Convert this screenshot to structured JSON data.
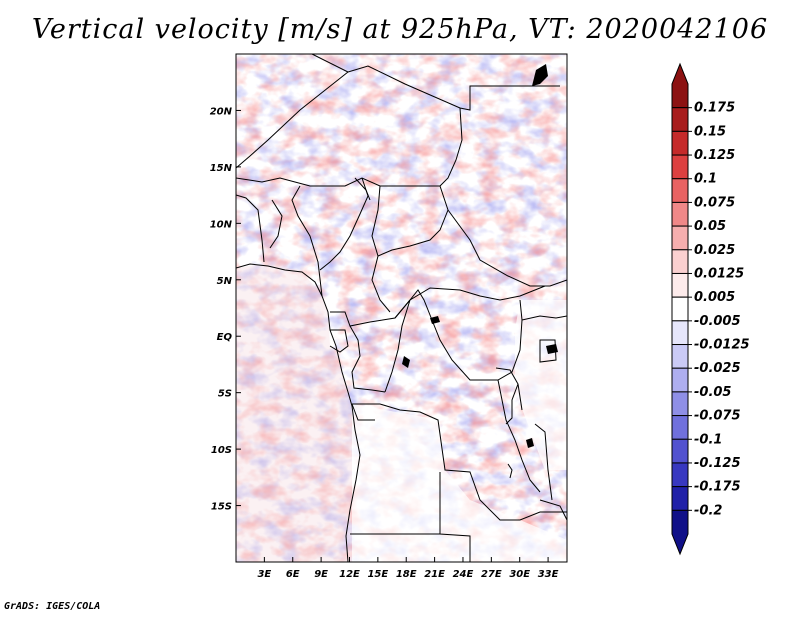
{
  "title": "Vertical velocity [m/s] at 925hPa, VT: 2020042106",
  "credit": "GrADS: IGES/COLA",
  "map": {
    "lon_range": [
      0,
      35
    ],
    "lat_range": [
      -20,
      25
    ],
    "lon_ticks": [
      {
        "value": 3,
        "label": "3E"
      },
      {
        "value": 6,
        "label": "6E"
      },
      {
        "value": 9,
        "label": "9E"
      },
      {
        "value": 12,
        "label": "12E"
      },
      {
        "value": 15,
        "label": "15E"
      },
      {
        "value": 18,
        "label": "18E"
      },
      {
        "value": 21,
        "label": "21E"
      },
      {
        "value": 24,
        "label": "24E"
      },
      {
        "value": 27,
        "label": "27E"
      },
      {
        "value": 30,
        "label": "30E"
      },
      {
        "value": 33,
        "label": "33E"
      }
    ],
    "lat_ticks": [
      {
        "value": 20,
        "label": "20N"
      },
      {
        "value": 15,
        "label": "15N"
      },
      {
        "value": 10,
        "label": "10N"
      },
      {
        "value": 5,
        "label": "5N"
      },
      {
        "value": 0,
        "label": "EQ"
      },
      {
        "value": -5,
        "label": "5S"
      },
      {
        "value": -10,
        "label": "10S"
      },
      {
        "value": -15,
        "label": "15S"
      }
    ]
  },
  "colorbar": {
    "colors": [
      "#8c1212",
      "#a81c1c",
      "#c52a2a",
      "#dc4040",
      "#e86262",
      "#f08888",
      "#f6aeae",
      "#fad0d0",
      "#fdebeb",
      "#ffffff",
      "#e6e6fb",
      "#cacaf6",
      "#aeaeef",
      "#8f8fe6",
      "#7070dc",
      "#5252d0",
      "#3838c0",
      "#2020a8",
      "#101088"
    ],
    "labels": [
      "0.175",
      "0.15",
      "0.125",
      "0.1",
      "0.075",
      "0.05",
      "0.025",
      "0.0125",
      "0.005",
      "-0.005",
      "-0.0125",
      "-0.025",
      "-0.05",
      "-0.075",
      "-0.1",
      "-0.125",
      "-0.175",
      "-0.2"
    ]
  }
}
